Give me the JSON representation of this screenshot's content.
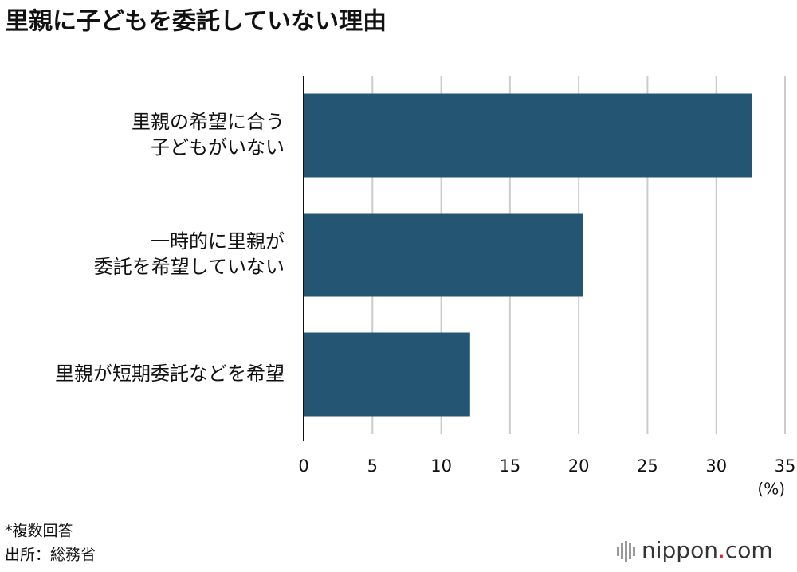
{
  "chart_data": {
    "type": "bar",
    "orientation": "horizontal",
    "title": "里親に子どもを委託していない理由",
    "categories": [
      [
        "里親の希望に合う",
        "子どもがいない"
      ],
      [
        "一時的に里親が",
        "委託を希望していない"
      ],
      [
        "里親が短期委託などを希望"
      ]
    ],
    "values": [
      32.6,
      20.3,
      12.1
    ],
    "color": "#245673",
    "xlim": [
      0,
      35
    ],
    "xticks": [
      0,
      5,
      10,
      15,
      20,
      25,
      30,
      35
    ],
    "x_unit": "(%)",
    "grid": true,
    "notes": [
      "*複数回答",
      "出所：総務省"
    ],
    "logo": [
      "nippon",
      ".",
      "com"
    ]
  }
}
